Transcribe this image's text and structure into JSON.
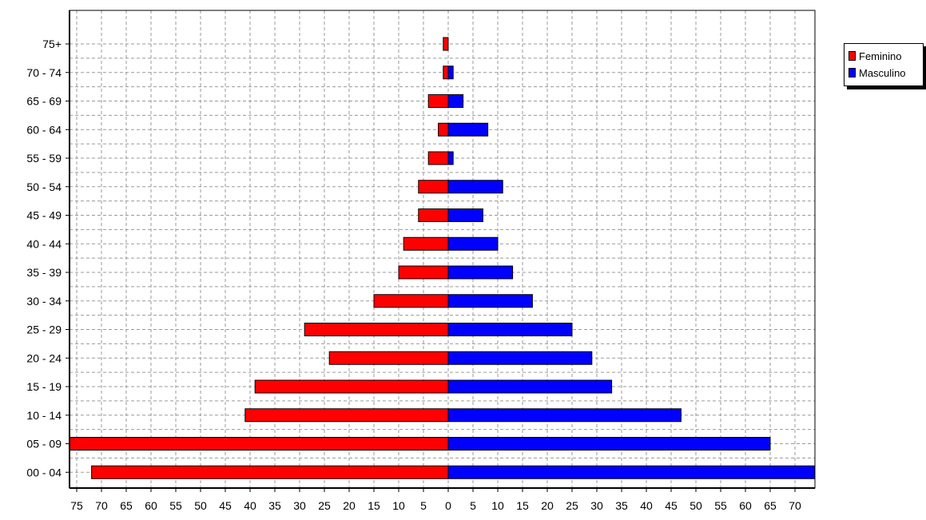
{
  "chart_data": {
    "type": "bar",
    "orientation": "horizontal-diverging",
    "categories": [
      "75+",
      "70 - 74",
      "65 - 69",
      "60 - 64",
      "55 - 59",
      "50 - 54",
      "45 - 49",
      "40 - 44",
      "35 - 39",
      "30 - 34",
      "25 - 29",
      "20 - 24",
      "15 - 19",
      "10 - 14",
      "05 - 09",
      "00 - 04"
    ],
    "series": [
      {
        "name": "Feminino",
        "color": "#ff0000",
        "direction": "left",
        "values": [
          1,
          1,
          4,
          2,
          4,
          6,
          6,
          9,
          10,
          15,
          29,
          24,
          39,
          41,
          77,
          72
        ]
      },
      {
        "name": "Masculino",
        "color": "#0000ff",
        "direction": "right",
        "values": [
          0,
          1,
          3,
          8,
          1,
          11,
          7,
          10,
          13,
          17,
          25,
          29,
          33,
          47,
          65,
          74
        ]
      }
    ],
    "x_tick_labels": [
      "75",
      "70",
      "65",
      "60",
      "55",
      "50",
      "45",
      "40",
      "35",
      "30",
      "25",
      "20",
      "15",
      "10",
      "5",
      "0",
      "5",
      "10",
      "15",
      "20",
      "25",
      "30",
      "35",
      "40",
      "45",
      "50",
      "55",
      "60",
      "65",
      "70"
    ],
    "xlim": [
      -77,
      74
    ],
    "grid": true,
    "legend_position": "top-right",
    "title": "",
    "xlabel": "",
    "ylabel": ""
  },
  "legend": {
    "items": [
      {
        "label": "Feminino",
        "color": "#ff0000"
      },
      {
        "label": "Masculino",
        "color": "#0000ff"
      }
    ]
  }
}
